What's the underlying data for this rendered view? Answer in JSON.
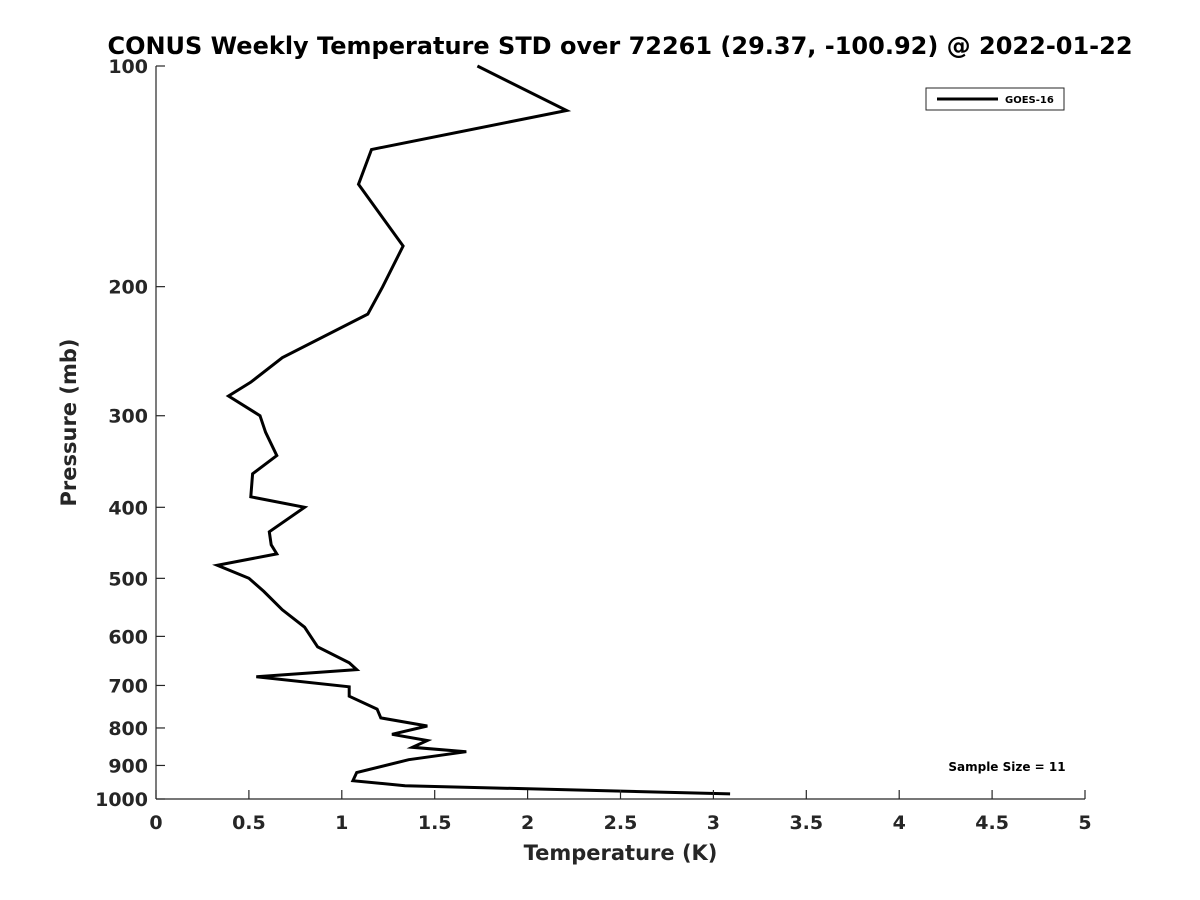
{
  "chart_data": {
    "type": "line",
    "title": "CONUS Weekly Temperature STD over 72261 (29.37, -100.92) @ 2022-01-22",
    "xlabel": "Temperature (K)",
    "ylabel": "Pressure (mb)",
    "xlim": [
      0,
      5
    ],
    "ylim": [
      100,
      1000
    ],
    "y_scale": "log",
    "y_reversed": true,
    "x_ticks": [
      "0",
      "0.5",
      "1",
      "1.5",
      "2",
      "2.5",
      "3",
      "3.5",
      "4",
      "4.5",
      "5"
    ],
    "y_ticks": [
      "100",
      "200",
      "300",
      "400",
      "500",
      "600",
      "700",
      "800",
      "900",
      "1000"
    ],
    "x_tick_values": [
      0,
      0.5,
      1,
      1.5,
      2,
      2.5,
      3,
      3.5,
      4,
      4.5,
      5
    ],
    "y_tick_values": [
      100,
      200,
      300,
      400,
      500,
      600,
      700,
      800,
      900,
      1000
    ],
    "grid": false,
    "legend_position": "top-right",
    "series": [
      {
        "name": "GOES-16",
        "color": "#000000",
        "points": [
          [
            1.73,
            100
          ],
          [
            2.21,
            115
          ],
          [
            1.16,
            130
          ],
          [
            1.09,
            145
          ],
          [
            1.33,
            176
          ],
          [
            1.22,
            200
          ],
          [
            1.14,
            218
          ],
          [
            0.68,
            250
          ],
          [
            0.51,
            270
          ],
          [
            0.39,
            282
          ],
          [
            0.56,
            300
          ],
          [
            0.59,
            316
          ],
          [
            0.65,
            340
          ],
          [
            0.52,
            360
          ],
          [
            0.51,
            387
          ],
          [
            0.8,
            400
          ],
          [
            0.61,
            432
          ],
          [
            0.62,
            450
          ],
          [
            0.65,
            463
          ],
          [
            0.33,
            480
          ],
          [
            0.5,
            500
          ],
          [
            0.58,
            521
          ],
          [
            0.68,
            552
          ],
          [
            0.8,
            583
          ],
          [
            0.87,
            620
          ],
          [
            1.04,
            652
          ],
          [
            1.08,
            666
          ],
          [
            0.54,
            681
          ],
          [
            1.04,
            703
          ],
          [
            1.04,
            724
          ],
          [
            1.19,
            754
          ],
          [
            1.21,
            775
          ],
          [
            1.46,
            795
          ],
          [
            1.27,
            816
          ],
          [
            1.46,
            832
          ],
          [
            1.38,
            850
          ],
          [
            1.67,
            862
          ],
          [
            1.36,
            884
          ],
          [
            1.08,
            920
          ],
          [
            1.06,
            944
          ],
          [
            1.34,
            959
          ],
          [
            3.09,
            984
          ]
        ]
      }
    ],
    "annotation": "Sample Size = 11"
  }
}
